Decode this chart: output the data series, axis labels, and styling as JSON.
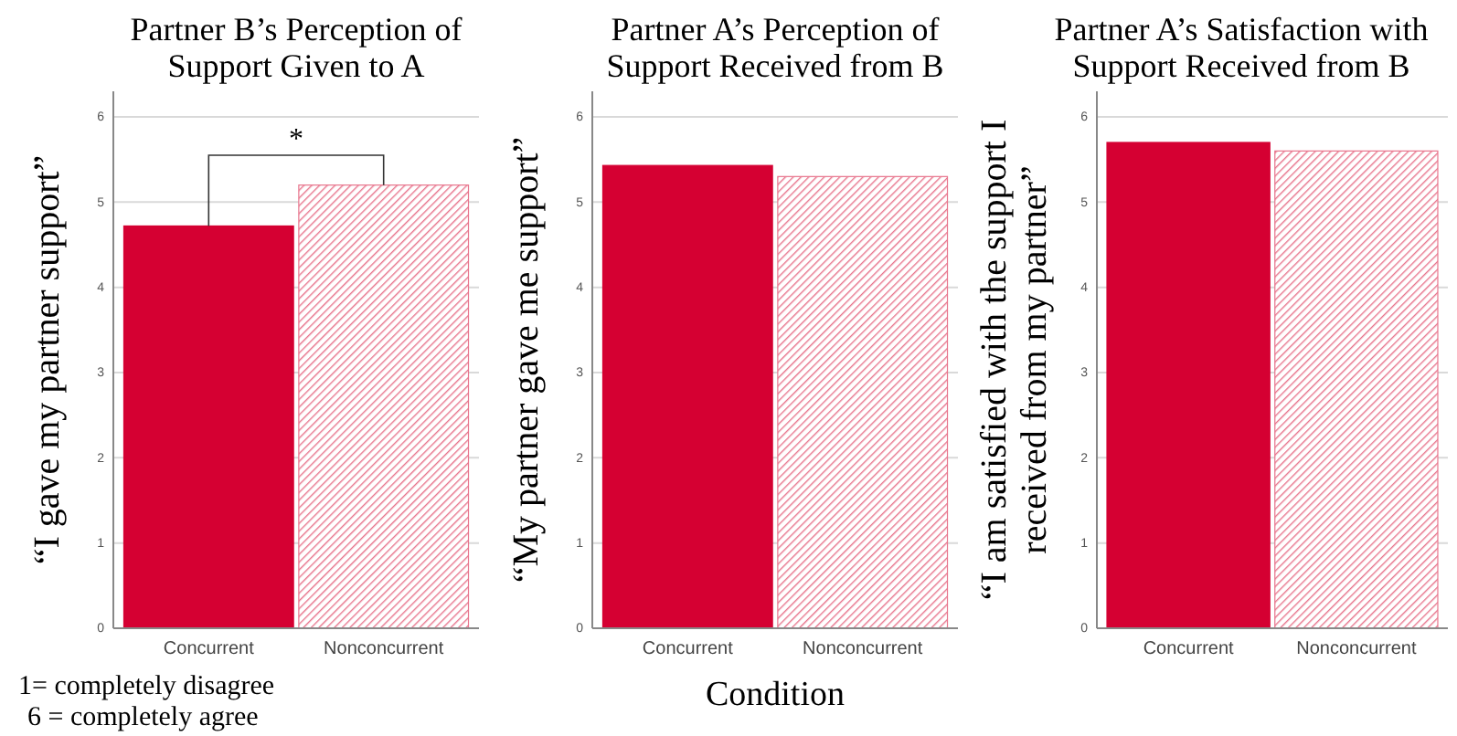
{
  "chart_data": [
    {
      "type": "bar",
      "title": "Partner B’s Perception of Support Given to A",
      "ylabel": "“I gave my partner support”",
      "categories": [
        "Concurrent",
        "Nonconcurrent"
      ],
      "values": [
        4.72,
        5.2
      ],
      "colors": [
        "#d50032",
        "#e8758d"
      ],
      "ylim": [
        0,
        6.3
      ],
      "yticks": [
        0,
        1,
        2,
        3,
        4,
        5,
        6
      ],
      "grid": "y",
      "annotations": [
        "*",
        "1= completely disagree",
        "6 = completely agree"
      ]
    },
    {
      "type": "bar",
      "title": "Partner A’s Perception of Support Received from B",
      "ylabel": "“My partner gave me support”",
      "xlabel": "Condition",
      "categories": [
        "Concurrent",
        "Nonconcurrent"
      ],
      "values": [
        5.43,
        5.3
      ],
      "colors": [
        "#d50032",
        "#e8758d"
      ],
      "ylim": [
        0,
        6.3
      ],
      "yticks": [
        0,
        1,
        2,
        3,
        4,
        5,
        6
      ],
      "grid": "y"
    },
    {
      "type": "bar",
      "title": "Partner A’s Satisfaction with Support Received from B",
      "ylabel": "“I am satisfied with the support I received from my partner”",
      "categories": [
        "Concurrent",
        "Nonconcurrent"
      ],
      "values": [
        5.7,
        5.6
      ],
      "colors": [
        "#d50032",
        "#e8758d"
      ],
      "ylim": [
        0,
        6.3
      ],
      "yticks": [
        0,
        1,
        2,
        3,
        4,
        5,
        6
      ],
      "grid": "y"
    }
  ]
}
